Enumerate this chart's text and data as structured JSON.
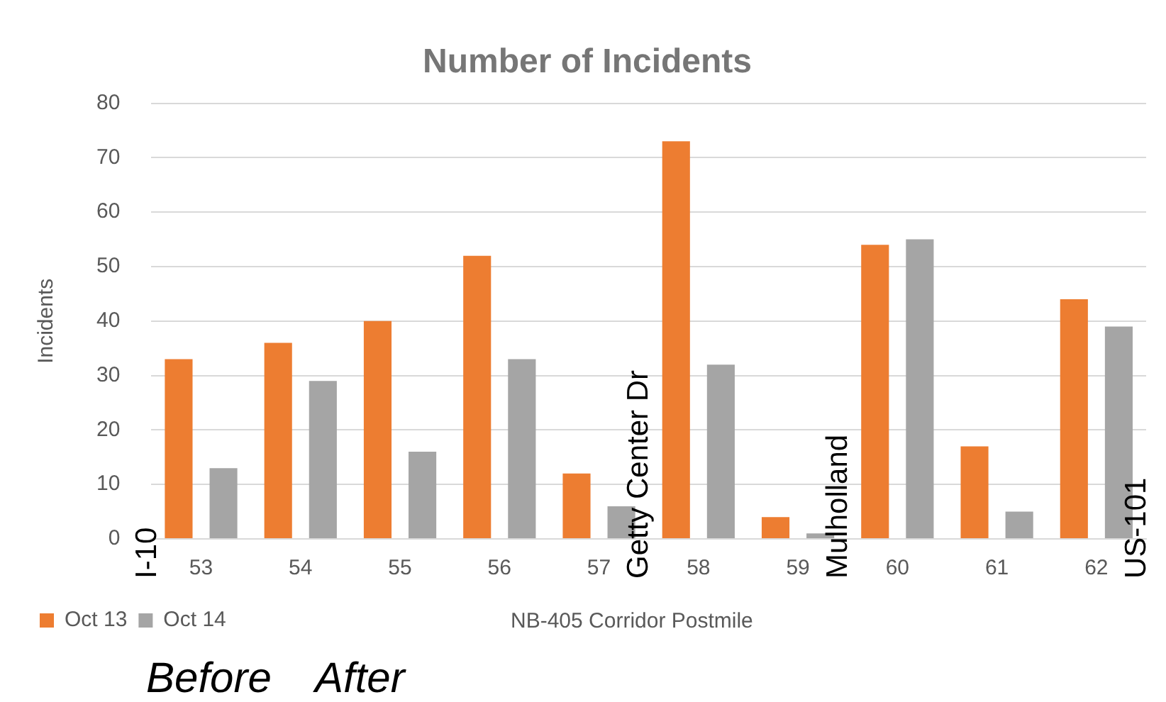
{
  "chart_data": {
    "type": "bar",
    "title": "Number of Incidents",
    "xlabel": "NB-405 Corridor Postmile",
    "ylabel": "Incidents",
    "categories": [
      "53",
      "54",
      "55",
      "56",
      "57",
      "58",
      "59",
      "60",
      "61",
      "62"
    ],
    "series": [
      {
        "name": "Oct 13",
        "color": "#ed7d31",
        "values": [
          33,
          36,
          40,
          52,
          12,
          73,
          4,
          54,
          17,
          44
        ]
      },
      {
        "name": "Oct 14",
        "color": "#a5a5a5",
        "values": [
          13,
          29,
          16,
          33,
          6,
          32,
          1,
          55,
          5,
          39
        ]
      }
    ],
    "ylim": [
      0,
      80
    ],
    "yticks": [
      0,
      10,
      20,
      30,
      40,
      50,
      60,
      70,
      80
    ],
    "grid": "y",
    "legend": "bottom left",
    "annotations": [
      "I-10",
      "Getty Center Dr",
      "Mulholland",
      "US-101",
      "Before",
      "After"
    ]
  }
}
